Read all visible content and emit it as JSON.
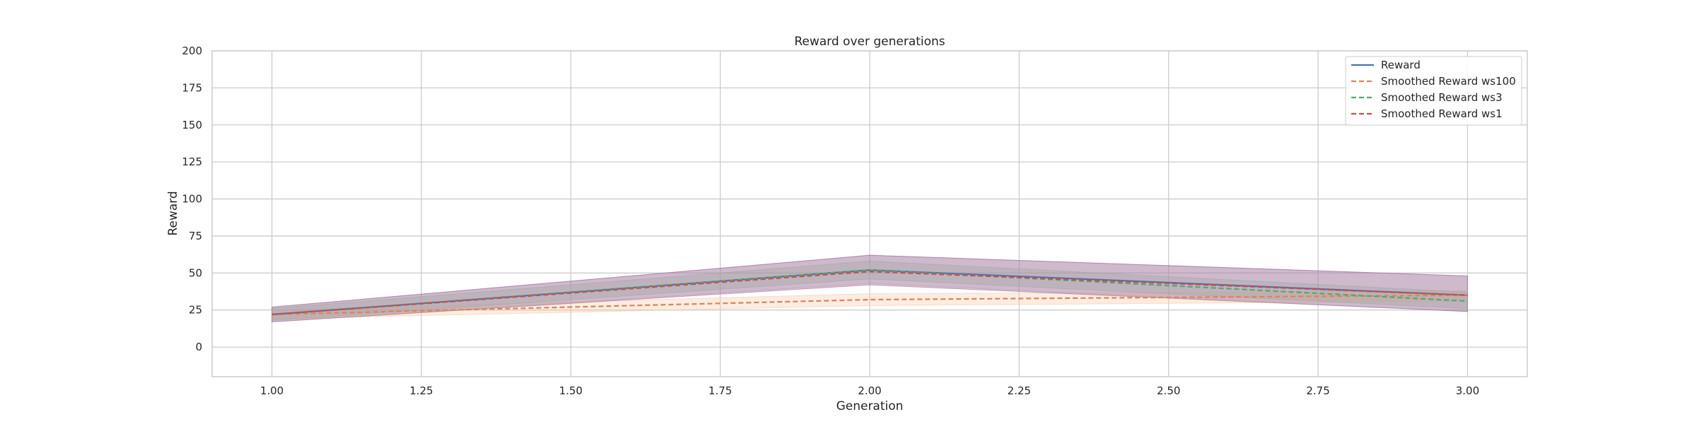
{
  "chart_data": {
    "type": "line",
    "title": "Reward over generations",
    "xlabel": "Generation",
    "ylabel": "Reward",
    "xlim": [
      0.9,
      3.1
    ],
    "ylim": [
      -20,
      200
    ],
    "xticks": [
      1.0,
      1.25,
      1.5,
      1.75,
      2.0,
      2.25,
      2.5,
      2.75,
      3.0
    ],
    "xtick_labels": [
      "1.00",
      "1.25",
      "1.50",
      "1.75",
      "2.00",
      "2.25",
      "2.50",
      "2.75",
      "3.00"
    ],
    "yticks": [
      0,
      25,
      50,
      75,
      100,
      125,
      150,
      175,
      200
    ],
    "ytick_labels": [
      "0",
      "25",
      "50",
      "75",
      "100",
      "125",
      "150",
      "175",
      "200"
    ],
    "grid": true,
    "legend_position": "top-right",
    "x": [
      1,
      2,
      3
    ],
    "series": [
      {
        "name": "Reward",
        "values": [
          22,
          52,
          35
        ],
        "lower": [
          17,
          43,
          24
        ],
        "upper": [
          27,
          62,
          48
        ],
        "color": "#4c72b0",
        "dash": "solid",
        "band_color": "#c5b0d5"
      },
      {
        "name": "Smoothed Reward ws100",
        "values": [
          22,
          32,
          35
        ],
        "lower": [
          19,
          28,
          31
        ],
        "upper": [
          25,
          36,
          38
        ],
        "color": "#dd8452",
        "dash": "dashed",
        "band_color": "#f7c9a9"
      },
      {
        "name": "Smoothed Reward ws3",
        "values": [
          22,
          52,
          31
        ],
        "lower": [
          18,
          46,
          26
        ],
        "upper": [
          26,
          58,
          37
        ],
        "color": "#55a868",
        "dash": "dashed",
        "band_color": "#a3c9a8"
      },
      {
        "name": "Smoothed Reward ws1",
        "values": [
          22,
          51,
          35
        ],
        "lower": [
          17,
          42,
          24
        ],
        "upper": [
          27,
          62,
          48
        ],
        "color": "#c44e52",
        "dash": "dashed",
        "band_color": "#9c6b8c"
      }
    ]
  }
}
